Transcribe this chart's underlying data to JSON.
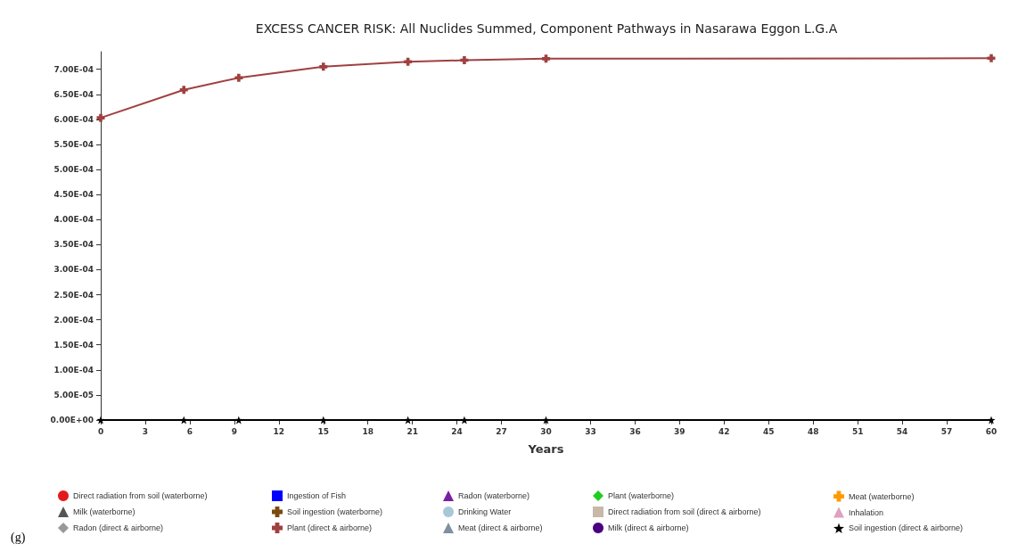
{
  "chart_data": {
    "type": "line",
    "title": "EXCESS CANCER RISK: All Nuclides Summed, Component Pathways in Nasarawa Eggon L.G.A",
    "xlabel": "Years",
    "x": [
      0,
      5.6,
      9.3,
      15,
      20.7,
      24.5,
      30,
      60
    ],
    "xlim": [
      0,
      60
    ],
    "xticks": [
      0,
      3,
      6,
      9,
      12,
      15,
      18,
      21,
      24,
      27,
      30,
      33,
      36,
      39,
      42,
      45,
      48,
      51,
      54,
      57,
      60
    ],
    "ylim": [
      0,
      0.000735
    ],
    "yticks": [
      {
        "value": 0,
        "label": "0.00E+00"
      },
      {
        "value": 5e-05,
        "label": "5.00E-05"
      },
      {
        "value": 0.0001,
        "label": "1.00E-04"
      },
      {
        "value": 0.00015,
        "label": "1.50E-04"
      },
      {
        "value": 0.0002,
        "label": "2.00E-04"
      },
      {
        "value": 0.00025,
        "label": "2.50E-04"
      },
      {
        "value": 0.0003,
        "label": "3.00E-04"
      },
      {
        "value": 0.00035,
        "label": "3.50E-04"
      },
      {
        "value": 0.0004,
        "label": "4.00E-04"
      },
      {
        "value": 0.00045,
        "label": "4.50E-04"
      },
      {
        "value": 0.0005,
        "label": "5.00E-04"
      },
      {
        "value": 0.00055,
        "label": "5.50E-04"
      },
      {
        "value": 0.0006,
        "label": "6.00E-04"
      },
      {
        "value": 0.00065,
        "label": "6.50E-04"
      },
      {
        "value": 0.0007,
        "label": "7.00E-04"
      }
    ],
    "grid": false,
    "legend": "bottom",
    "annotations": [
      "(g)"
    ],
    "series": [
      {
        "name": "Direct radiation from soil (waterborne)",
        "color": "#e31a1c",
        "marker": "circle",
        "values": [
          null,
          null,
          null,
          null,
          null,
          null,
          null,
          null
        ]
      },
      {
        "name": "Ingestion of Fish",
        "color": "#0000ff",
        "marker": "square",
        "values": [
          null,
          null,
          null,
          null,
          null,
          null,
          null,
          null
        ]
      },
      {
        "name": "Radon (waterborne)",
        "color": "#7b1fa2",
        "marker": "triangle",
        "values": [
          null,
          null,
          null,
          null,
          null,
          null,
          null,
          null
        ]
      },
      {
        "name": "Plant (waterborne)",
        "color": "#22cc22",
        "marker": "diamond",
        "values": [
          null,
          null,
          null,
          null,
          null,
          null,
          null,
          null
        ]
      },
      {
        "name": "Meat (waterborne)",
        "color": "#ff9900",
        "marker": "cross",
        "values": [
          null,
          null,
          null,
          null,
          null,
          null,
          null,
          null
        ]
      },
      {
        "name": "Milk (waterborne)",
        "color": "#555555",
        "marker": "triangle",
        "values": [
          null,
          null,
          null,
          null,
          null,
          null,
          null,
          null
        ]
      },
      {
        "name": "Soil ingestion (waterborne)",
        "color": "#7a4a10",
        "marker": "cross",
        "values": [
          null,
          null,
          null,
          null,
          null,
          null,
          null,
          null
        ]
      },
      {
        "name": "Drinking Water",
        "color": "#a8c8d8",
        "marker": "circle",
        "values": [
          null,
          null,
          null,
          null,
          null,
          null,
          null,
          null
        ]
      },
      {
        "name": "Direct radiation from soil (direct & airborne)",
        "color": "#c8b8a8",
        "marker": "square",
        "values": [
          null,
          null,
          null,
          null,
          null,
          null,
          null,
          null
        ]
      },
      {
        "name": "Inhalation",
        "color": "#e0a0c0",
        "marker": "triangle",
        "values": [
          null,
          null,
          null,
          null,
          null,
          null,
          null,
          null
        ]
      },
      {
        "name": "Radon (direct & airborne)",
        "color": "#999999",
        "marker": "diamond",
        "values": [
          null,
          null,
          null,
          null,
          null,
          null,
          null,
          null
        ]
      },
      {
        "name": "Plant (direct & airborne)",
        "color": "#a04040",
        "marker": "cross",
        "values": [
          0.000603,
          0.000659,
          0.000683,
          0.000705,
          0.000715,
          0.000718,
          0.000721,
          0.000722
        ]
      },
      {
        "name": "Meat (direct & airborne)",
        "color": "#8090a0",
        "marker": "triangle",
        "values": [
          null,
          null,
          null,
          null,
          null,
          null,
          null,
          null
        ]
      },
      {
        "name": "Milk (direct & airborne)",
        "color": "#4b0082",
        "marker": "circle",
        "values": [
          null,
          null,
          null,
          null,
          null,
          null,
          null,
          null
        ]
      },
      {
        "name": "Soil ingestion (direct & airborne)",
        "color": "#000000",
        "marker": "star",
        "values": [
          0,
          0,
          0,
          0,
          0,
          0,
          0,
          0
        ]
      }
    ]
  }
}
